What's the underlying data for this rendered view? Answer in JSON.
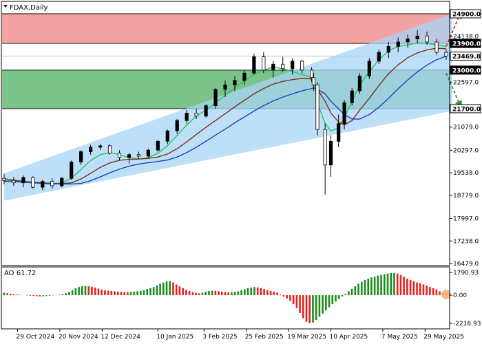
{
  "chart_data": [
    {
      "type": "candlestick",
      "title": "FDAX,Daily",
      "symbol": "FDAX",
      "timeframe": "Daily",
      "y_ticks": [
        "24138.0",
        "22597.0",
        "21079.0",
        "20297.0",
        "19538.0",
        "18779.0",
        "17997.0",
        "17238.0",
        "16479.0"
      ],
      "x_ticks": [
        "29 Oct 2024",
        "20 Nov 2024",
        "12 Dec 2024",
        "10 Jan 2025",
        "3 Feb 2025",
        "25 Feb 2025",
        "19 Mar 2025",
        "10 Apr 2025",
        "7 May 2025",
        "29 May 2025"
      ],
      "ylim": [
        16479,
        24900
      ],
      "levels": [
        {
          "label": "24900.0",
          "value": 24900,
          "style": "outlined"
        },
        {
          "label": "23900.0",
          "value": 23900,
          "style": "filled"
        },
        {
          "label": "23469.8",
          "value": 23469.8,
          "style": "current"
        },
        {
          "label": "23000.0",
          "value": 23000,
          "style": "filled"
        },
        {
          "label": "21700.0",
          "value": 21700,
          "style": "outlined"
        }
      ],
      "zones": [
        {
          "name": "resistance zone",
          "from": 23900,
          "to": 24900,
          "color": "#f4a3a3"
        },
        {
          "name": "support zone",
          "from": 21700,
          "to": 23000,
          "color": "#7cc48a"
        }
      ],
      "channel": {
        "start_date": "2024-10-22",
        "end_date": "2025-06-12",
        "lower_start": 18600,
        "lower_end": 21620,
        "upper_start": 19520,
        "upper_end": 24900,
        "color": "#a8d4f5"
      },
      "arrows": [
        {
          "direction": "up",
          "from": 23800,
          "to": 24880,
          "color": "#e8201c"
        },
        {
          "direction": "down",
          "from": 22900,
          "to": 21820,
          "color": "#2e8b2e"
        }
      ],
      "moving_averages": [
        {
          "color": "#22c55e",
          "values": [
            19340,
            19300,
            19250,
            19200,
            19180,
            19160,
            19200,
            19350,
            19650,
            19950,
            20150,
            20220,
            20150,
            20050,
            20000,
            20050,
            20200,
            20450,
            20800,
            21150,
            21450,
            21650,
            21900,
            22150,
            22400,
            22650,
            22850,
            23000,
            23100,
            23050,
            22950,
            22850,
            22750,
            22650,
            21900,
            21200,
            20950,
            21050,
            21400,
            21950,
            22500,
            22950,
            23350,
            23650,
            23800,
            23850,
            23920,
            23900,
            23850,
            23800
          ]
        },
        {
          "color": "#7a2e1a",
          "values": [
            19300,
            19280,
            19250,
            19220,
            19200,
            19180,
            19170,
            19200,
            19330,
            19520,
            19720,
            19870,
            19960,
            19990,
            20000,
            20020,
            20070,
            20170,
            20350,
            20580,
            20830,
            21070,
            21300,
            21530,
            21760,
            21980,
            22200,
            22380,
            22530,
            22620,
            22680,
            22720,
            22700,
            22650,
            22350,
            21950,
            21550,
            21250,
            21150,
            21300,
            21650,
            22050,
            22480,
            22880,
            23180,
            23420,
            23580,
            23680,
            23740,
            23720
          ]
        },
        {
          "color": "#1d3fbf",
          "values": [
            19250,
            19240,
            19220,
            19200,
            19180,
            19170,
            19160,
            19160,
            19180,
            19270,
            19400,
            19540,
            19660,
            19760,
            19830,
            19880,
            19920,
            19970,
            20070,
            20220,
            20400,
            20600,
            20810,
            21010,
            21220,
            21420,
            21620,
            21800,
            21960,
            22090,
            22200,
            22300,
            22380,
            22400,
            22350,
            22200,
            21950,
            21700,
            21500,
            21350,
            21350,
            21500,
            21750,
            22050,
            22370,
            22670,
            22940,
            23170,
            23350,
            23470
          ]
        }
      ],
      "candles": [
        [
          19350,
          19500,
          19150,
          19280
        ],
        [
          19280,
          19400,
          19100,
          19200
        ],
        [
          19200,
          19450,
          19050,
          19380
        ],
        [
          19380,
          19420,
          19000,
          19050
        ],
        [
          19050,
          19300,
          18950,
          19250
        ],
        [
          19250,
          19350,
          19000,
          19100
        ],
        [
          19100,
          19400,
          19050,
          19350
        ],
        [
          19350,
          19950,
          19300,
          19900
        ],
        [
          19900,
          20300,
          19800,
          20250
        ],
        [
          20250,
          20480,
          20150,
          20400
        ],
        [
          20400,
          20500,
          20300,
          20450
        ],
        [
          20450,
          20500,
          20150,
          20200
        ],
        [
          20200,
          20300,
          19950,
          20050
        ],
        [
          20050,
          20200,
          19850,
          20150
        ],
        [
          20150,
          20250,
          20000,
          20100
        ],
        [
          20100,
          20350,
          20050,
          20300
        ],
        [
          20300,
          20650,
          20250,
          20600
        ],
        [
          20600,
          21000,
          20500,
          20950
        ],
        [
          20950,
          21350,
          20850,
          21300
        ],
        [
          21300,
          21650,
          21200,
          21550
        ],
        [
          21550,
          21700,
          21350,
          21450
        ],
        [
          21450,
          21850,
          21400,
          21800
        ],
        [
          21800,
          22400,
          21700,
          22350
        ],
        [
          22350,
          22650,
          22100,
          22500
        ],
        [
          22500,
          22800,
          22300,
          22650
        ],
        [
          22650,
          23000,
          22500,
          22900
        ],
        [
          22900,
          23550,
          22850,
          23450
        ],
        [
          23450,
          23600,
          22900,
          23000
        ],
        [
          23000,
          23300,
          22750,
          23200
        ],
        [
          23200,
          23450,
          22950,
          23050
        ],
        [
          23050,
          23400,
          22850,
          23300
        ],
        [
          23300,
          23350,
          22900,
          23000
        ],
        [
          23000,
          23100,
          22600,
          22750
        ],
        [
          22750,
          22900,
          22300,
          22500
        ],
        [
          22500,
          22600,
          20800,
          21000
        ],
        [
          21000,
          21200,
          18800,
          19800
        ],
        [
          19800,
          20800,
          19400,
          20600
        ],
        [
          20600,
          21500,
          20400,
          21200
        ],
        [
          21200,
          22000,
          21000,
          21900
        ],
        [
          21900,
          22400,
          21800,
          22300
        ],
        [
          22300,
          22900,
          22200,
          22800
        ],
        [
          22800,
          23400,
          22700,
          23300
        ],
        [
          23300,
          23700,
          23200,
          23600
        ],
        [
          23600,
          23950,
          23400,
          23800
        ],
        [
          23800,
          24100,
          23600,
          23950
        ],
        [
          23950,
          24200,
          23750,
          24050
        ],
        [
          24050,
          24350,
          23900,
          24150
        ],
        [
          24150,
          24300,
          23850,
          23950
        ],
        [
          23950,
          24050,
          23500,
          23600
        ],
        [
          23600,
          23700,
          23350,
          23469.8
        ]
      ],
      "candle_dates": [
        "2024-10-22",
        "2024-10-27",
        "2024-11-01",
        "2024-11-06",
        "2024-11-11",
        "2024-11-16",
        "2024-11-21",
        "2024-11-26",
        "2024-12-01",
        "2024-12-06",
        "2024-12-11",
        "2024-12-16",
        "2024-12-21",
        "2024-12-26",
        "2024-12-31",
        "2025-01-05",
        "2025-01-10",
        "2025-01-15",
        "2025-01-20",
        "2025-01-25",
        "2025-01-30",
        "2025-02-04",
        "2025-02-09",
        "2025-02-14",
        "2025-02-19",
        "2025-02-24",
        "2025-03-01",
        "2025-03-06",
        "2025-03-11",
        "2025-03-16",
        "2025-03-21",
        "2025-03-26",
        "2025-03-31",
        "2025-04-01",
        "2025-04-03",
        "2025-04-07",
        "2025-04-10",
        "2025-04-14",
        "2025-04-17",
        "2025-04-21",
        "2025-04-25",
        "2025-04-30",
        "2025-05-05",
        "2025-05-10",
        "2025-05-15",
        "2025-05-20",
        "2025-05-25",
        "2025-05-30",
        "2025-06-04",
        "2025-06-09"
      ],
      "up_color": "#000000",
      "down_color": "#ffffff"
    },
    {
      "type": "histogram",
      "title": "AO 61.72",
      "y_ticks": [
        "1790.93",
        "0.00",
        "-2216.93"
      ],
      "ylim": [
        -2216.93,
        1790.93
      ],
      "up_color": "#1a8a1a",
      "down_color": "#e8201c",
      "values": [
        200,
        160,
        120,
        80,
        50,
        30,
        10,
        -20,
        -40,
        -60,
        -80,
        -100,
        -90,
        -70,
        -40,
        -20,
        10,
        40,
        80,
        150,
        250,
        400,
        550,
        650,
        700,
        720,
        700,
        650,
        600,
        520,
        430,
        380,
        350,
        330,
        300,
        280,
        260,
        250,
        240,
        260,
        280,
        310,
        350,
        400,
        480,
        560,
        640,
        760,
        900,
        1000,
        1080,
        1100,
        1000,
        850,
        700,
        550,
        420,
        330,
        250,
        180,
        150,
        200,
        280,
        330,
        350,
        340,
        310,
        280,
        240,
        220,
        230,
        250,
        300,
        380,
        470,
        550,
        600,
        640,
        620,
        560,
        480,
        400,
        330,
        280,
        200,
        50,
        -100,
        -250,
        -450,
        -700,
        -1000,
        -1400,
        -1800,
        -2100,
        -2200,
        -2150,
        -1950,
        -1700,
        -1450,
        -1200,
        -950,
        -700,
        -500,
        -300,
        -100,
        100,
        300,
        500,
        700,
        900,
        1050,
        1200,
        1300,
        1400,
        1450,
        1550,
        1600,
        1650,
        1700,
        1750,
        1750,
        1700,
        1600,
        1450,
        1300,
        1200,
        1100,
        1000,
        950,
        850,
        750,
        650,
        550,
        450,
        300,
        120,
        62
      ]
    }
  ],
  "colors": {
    "background": "#ffffff",
    "panel_border": "#000000"
  }
}
